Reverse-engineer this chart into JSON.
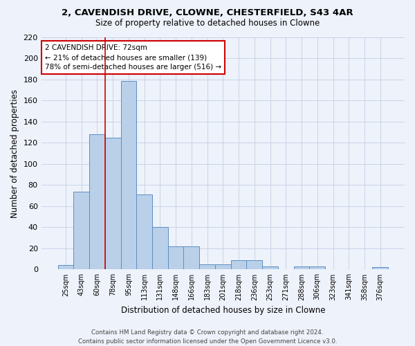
{
  "title": "2, CAVENDISH DRIVE, CLOWNE, CHESTERFIELD, S43 4AR",
  "subtitle": "Size of property relative to detached houses in Clowne",
  "xlabel": "Distribution of detached houses by size in Clowne",
  "ylabel": "Number of detached properties",
  "categories": [
    "25sqm",
    "43sqm",
    "60sqm",
    "78sqm",
    "95sqm",
    "113sqm",
    "131sqm",
    "148sqm",
    "166sqm",
    "183sqm",
    "201sqm",
    "218sqm",
    "236sqm",
    "253sqm",
    "271sqm",
    "288sqm",
    "306sqm",
    "323sqm",
    "341sqm",
    "358sqm",
    "376sqm"
  ],
  "values": [
    4,
    74,
    128,
    125,
    179,
    71,
    40,
    22,
    22,
    5,
    5,
    9,
    9,
    3,
    0,
    3,
    3,
    0,
    0,
    0,
    2
  ],
  "bar_color": "#bad0e8",
  "bar_edge_color": "#5b8ec4",
  "grid_color": "#c8d4e8",
  "background_color": "#eef2fa",
  "vline_color": "#cc0000",
  "vline_x": 2.5,
  "annotation_text": "2 CAVENDISH DRIVE: 72sqm\n← 21% of detached houses are smaller (139)\n78% of semi-detached houses are larger (516) →",
  "annotation_box_color": "white",
  "annotation_box_edge_color": "#cc0000",
  "ylim": [
    0,
    220
  ],
  "yticks": [
    0,
    20,
    40,
    60,
    80,
    100,
    120,
    140,
    160,
    180,
    200,
    220
  ],
  "footer": "Contains HM Land Registry data © Crown copyright and database right 2024.\nContains public sector information licensed under the Open Government Licence v3.0."
}
